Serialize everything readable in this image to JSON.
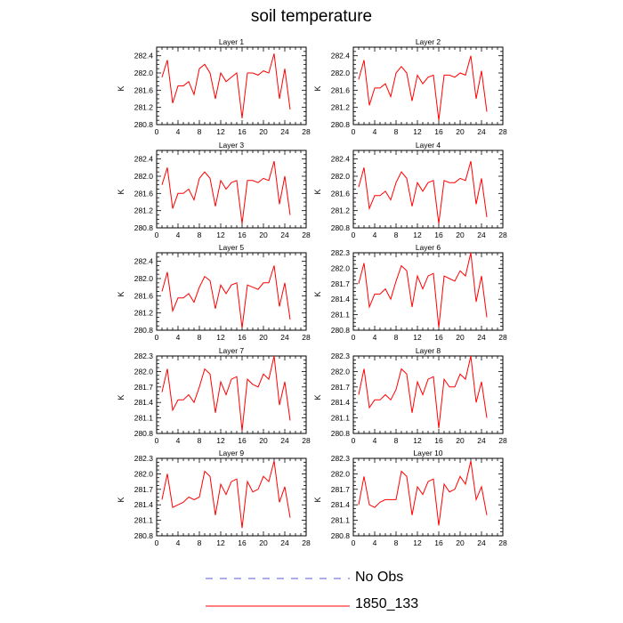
{
  "title": "soil temperature",
  "colors": {
    "model": "#ff0000",
    "obs": "#5b5bd6",
    "axis": "#000000"
  },
  "legend": [
    {
      "label": "No Obs",
      "style": "dashed",
      "color": "#5b5bd6"
    },
    {
      "label": "1850_133",
      "style": "solid",
      "color": "#ff0000"
    }
  ],
  "chart_data": [
    {
      "type": "line",
      "title": "Layer 1",
      "ylabel": "K",
      "xlim": [
        0,
        28
      ],
      "xticks": [
        0,
        4,
        8,
        12,
        16,
        20,
        24,
        28
      ],
      "ylim": [
        280.8,
        282.6
      ],
      "yticks": [
        280.8,
        281.2,
        281.6,
        282.0,
        282.4
      ],
      "ytick_labels": [
        "280.8",
        "281.2",
        "281.6",
        "282.0",
        "282.4"
      ],
      "series": [
        {
          "x": [
            1,
            2,
            3,
            4,
            5,
            6,
            7,
            8,
            9,
            10,
            11,
            12,
            13,
            14,
            15,
            16,
            17,
            18,
            19,
            20,
            21,
            22,
            23,
            24,
            25
          ],
          "values": [
            281.9,
            282.3,
            281.3,
            281.7,
            281.7,
            281.8,
            281.5,
            282.1,
            282.2,
            282.0,
            281.4,
            282.0,
            281.8,
            281.9,
            282.0,
            280.95,
            282.0,
            282.0,
            281.95,
            282.05,
            282.0,
            282.45,
            281.4,
            282.1,
            281.15
          ]
        }
      ]
    },
    {
      "type": "line",
      "title": "Layer 2",
      "ylabel": "K",
      "xlim": [
        0,
        28
      ],
      "xticks": [
        0,
        4,
        8,
        12,
        16,
        20,
        24,
        28
      ],
      "ylim": [
        280.8,
        282.6
      ],
      "yticks": [
        280.8,
        281.2,
        281.6,
        282.0,
        282.4
      ],
      "ytick_labels": [
        "280.8",
        "281.2",
        "281.6",
        "282.0",
        "282.4"
      ],
      "series": [
        {
          "x": [
            1,
            2,
            3,
            4,
            5,
            6,
            7,
            8,
            9,
            10,
            11,
            12,
            13,
            14,
            15,
            16,
            17,
            18,
            19,
            20,
            21,
            22,
            23,
            24,
            25
          ],
          "values": [
            281.85,
            282.3,
            281.25,
            281.65,
            281.65,
            281.75,
            281.45,
            282.0,
            282.15,
            282.0,
            281.35,
            281.95,
            281.75,
            281.9,
            281.95,
            280.9,
            281.95,
            281.95,
            281.9,
            282.0,
            281.95,
            282.4,
            281.4,
            282.05,
            281.1
          ]
        }
      ]
    },
    {
      "type": "line",
      "title": "Layer 3",
      "ylabel": "K",
      "xlim": [
        0,
        28
      ],
      "xticks": [
        0,
        4,
        8,
        12,
        16,
        20,
        24,
        28
      ],
      "ylim": [
        280.8,
        282.6
      ],
      "yticks": [
        280.8,
        281.2,
        281.6,
        282.0,
        282.4
      ],
      "ytick_labels": [
        "280.8",
        "281.2",
        "281.6",
        "282.0",
        "282.4"
      ],
      "series": [
        {
          "x": [
            1,
            2,
            3,
            4,
            5,
            6,
            7,
            8,
            9,
            10,
            11,
            12,
            13,
            14,
            15,
            16,
            17,
            18,
            19,
            20,
            21,
            22,
            23,
            24,
            25
          ],
          "values": [
            281.8,
            282.2,
            281.25,
            281.6,
            281.6,
            281.7,
            281.45,
            281.95,
            282.1,
            281.95,
            281.3,
            281.9,
            281.7,
            281.85,
            281.9,
            280.9,
            281.9,
            281.9,
            281.85,
            281.95,
            281.9,
            282.35,
            281.35,
            282.0,
            281.1
          ]
        }
      ]
    },
    {
      "type": "line",
      "title": "Layer 4",
      "ylabel": "K",
      "xlim": [
        0,
        28
      ],
      "xticks": [
        0,
        4,
        8,
        12,
        16,
        20,
        24,
        28
      ],
      "ylim": [
        280.8,
        282.6
      ],
      "yticks": [
        280.8,
        281.2,
        281.6,
        282.0,
        282.4
      ],
      "ytick_labels": [
        "280.8",
        "281.2",
        "281.6",
        "282.0",
        "282.4"
      ],
      "series": [
        {
          "x": [
            1,
            2,
            3,
            4,
            5,
            6,
            7,
            8,
            9,
            10,
            11,
            12,
            13,
            14,
            15,
            16,
            17,
            18,
            19,
            20,
            21,
            22,
            23,
            24,
            25
          ],
          "values": [
            281.75,
            282.2,
            281.25,
            281.55,
            281.55,
            281.65,
            281.45,
            281.85,
            282.1,
            281.95,
            281.3,
            281.85,
            281.65,
            281.85,
            281.9,
            280.9,
            281.9,
            281.85,
            281.85,
            281.95,
            281.9,
            282.35,
            281.35,
            281.95,
            281.05
          ]
        }
      ]
    },
    {
      "type": "line",
      "title": "Layer 5",
      "ylabel": "K",
      "xlim": [
        0,
        28
      ],
      "xticks": [
        0,
        4,
        8,
        12,
        16,
        20,
        24,
        28
      ],
      "ylim": [
        280.8,
        282.6
      ],
      "yticks": [
        280.8,
        281.2,
        281.6,
        282.0,
        282.4
      ],
      "ytick_labels": [
        "280.8",
        "281.2",
        "281.6",
        "282.0",
        "282.4"
      ],
      "series": [
        {
          "x": [
            1,
            2,
            3,
            4,
            5,
            6,
            7,
            8,
            9,
            10,
            11,
            12,
            13,
            14,
            15,
            16,
            17,
            18,
            19,
            20,
            21,
            22,
            23,
            24,
            25
          ],
          "values": [
            281.7,
            282.15,
            281.25,
            281.55,
            281.55,
            281.65,
            281.45,
            281.8,
            282.05,
            281.95,
            281.3,
            281.85,
            281.65,
            281.85,
            281.9,
            280.85,
            281.85,
            281.8,
            281.75,
            281.9,
            281.9,
            282.3,
            281.35,
            281.9,
            281.05
          ]
        }
      ]
    },
    {
      "type": "line",
      "title": "Layer 6",
      "ylabel": "K",
      "xlim": [
        0,
        28
      ],
      "xticks": [
        0,
        4,
        8,
        12,
        16,
        20,
        24,
        28
      ],
      "ylim": [
        280.8,
        282.3
      ],
      "yticks": [
        280.8,
        281.1,
        281.4,
        281.7,
        282.0,
        282.3
      ],
      "ytick_labels": [
        "280.8",
        "281.1",
        "281.4",
        "281.7",
        "282.0",
        "282.3"
      ],
      "series": [
        {
          "x": [
            1,
            2,
            3,
            4,
            5,
            6,
            7,
            8,
            9,
            10,
            11,
            12,
            13,
            14,
            15,
            16,
            17,
            18,
            19,
            20,
            21,
            22,
            23,
            24,
            25
          ],
          "values": [
            281.7,
            282.1,
            281.25,
            281.5,
            281.5,
            281.6,
            281.4,
            281.75,
            282.05,
            281.95,
            281.25,
            281.85,
            281.6,
            281.85,
            281.9,
            280.85,
            281.85,
            281.8,
            281.75,
            281.95,
            281.85,
            282.3,
            281.35,
            281.85,
            281.05
          ]
        }
      ]
    },
    {
      "type": "line",
      "title": "Layer 7",
      "ylabel": "K",
      "xlim": [
        0,
        28
      ],
      "xticks": [
        0,
        4,
        8,
        12,
        16,
        20,
        24,
        28
      ],
      "ylim": [
        280.8,
        282.3
      ],
      "yticks": [
        280.8,
        281.1,
        281.4,
        281.7,
        282.0,
        282.3
      ],
      "ytick_labels": [
        "280.8",
        "281.1",
        "281.4",
        "281.7",
        "282.0",
        "282.3"
      ],
      "series": [
        {
          "x": [
            1,
            2,
            3,
            4,
            5,
            6,
            7,
            8,
            9,
            10,
            11,
            12,
            13,
            14,
            15,
            16,
            17,
            18,
            19,
            20,
            21,
            22,
            23,
            24,
            25
          ],
          "values": [
            281.6,
            282.05,
            281.25,
            281.45,
            281.45,
            281.55,
            281.4,
            281.7,
            282.05,
            281.95,
            281.2,
            281.8,
            281.55,
            281.85,
            281.9,
            280.85,
            281.85,
            281.75,
            281.7,
            281.95,
            281.85,
            282.3,
            281.35,
            281.8,
            281.05
          ]
        }
      ]
    },
    {
      "type": "line",
      "title": "Layer 8",
      "ylabel": "K",
      "xlim": [
        0,
        28
      ],
      "xticks": [
        0,
        4,
        8,
        12,
        16,
        20,
        24,
        28
      ],
      "ylim": [
        280.8,
        282.3
      ],
      "yticks": [
        280.8,
        281.1,
        281.4,
        281.7,
        282.0,
        282.3
      ],
      "ytick_labels": [
        "280.8",
        "281.1",
        "281.4",
        "281.7",
        "282.0",
        "282.3"
      ],
      "series": [
        {
          "x": [
            1,
            2,
            3,
            4,
            5,
            6,
            7,
            8,
            9,
            10,
            11,
            12,
            13,
            14,
            15,
            16,
            17,
            18,
            19,
            20,
            21,
            22,
            23,
            24,
            25
          ],
          "values": [
            281.55,
            282.05,
            281.3,
            281.45,
            281.45,
            281.55,
            281.45,
            281.65,
            282.05,
            281.95,
            281.2,
            281.8,
            281.55,
            281.85,
            281.9,
            280.9,
            281.85,
            281.7,
            281.7,
            281.95,
            281.85,
            282.3,
            281.4,
            281.8,
            281.1
          ]
        }
      ]
    },
    {
      "type": "line",
      "title": "Layer 9",
      "ylabel": "K",
      "xlim": [
        0,
        28
      ],
      "xticks": [
        0,
        4,
        8,
        12,
        16,
        20,
        24,
        28
      ],
      "ylim": [
        280.8,
        282.3
      ],
      "yticks": [
        280.8,
        281.1,
        281.4,
        281.7,
        282.0,
        282.3
      ],
      "ytick_labels": [
        "280.8",
        "281.1",
        "281.4",
        "281.7",
        "282.0",
        "282.3"
      ],
      "series": [
        {
          "x": [
            1,
            2,
            3,
            4,
            5,
            6,
            7,
            8,
            9,
            10,
            11,
            12,
            13,
            14,
            15,
            16,
            17,
            18,
            19,
            20,
            21,
            22,
            23,
            24,
            25
          ],
          "values": [
            281.5,
            282.0,
            281.35,
            281.4,
            281.45,
            281.55,
            281.5,
            281.55,
            282.05,
            281.95,
            281.2,
            281.8,
            281.6,
            281.85,
            281.9,
            280.95,
            281.85,
            281.65,
            281.7,
            281.95,
            281.85,
            282.25,
            281.45,
            281.75,
            281.15
          ]
        }
      ]
    },
    {
      "type": "line",
      "title": "Layer 10",
      "ylabel": "K",
      "xlim": [
        0,
        28
      ],
      "xticks": [
        0,
        4,
        8,
        12,
        16,
        20,
        24,
        28
      ],
      "ylim": [
        280.8,
        282.3
      ],
      "yticks": [
        280.8,
        281.1,
        281.4,
        281.7,
        282.0,
        282.3
      ],
      "ytick_labels": [
        "280.8",
        "281.1",
        "281.4",
        "281.7",
        "282.0",
        "282.3"
      ],
      "series": [
        {
          "x": [
            1,
            2,
            3,
            4,
            5,
            6,
            7,
            8,
            9,
            10,
            11,
            12,
            13,
            14,
            15,
            16,
            17,
            18,
            19,
            20,
            21,
            22,
            23,
            24,
            25
          ],
          "values": [
            281.4,
            281.95,
            281.4,
            281.35,
            281.45,
            281.5,
            281.5,
            281.5,
            282.05,
            281.95,
            281.2,
            281.75,
            281.6,
            281.85,
            281.9,
            281.0,
            281.8,
            281.65,
            281.7,
            281.95,
            281.8,
            282.25,
            281.5,
            281.75,
            281.2
          ]
        }
      ]
    }
  ]
}
